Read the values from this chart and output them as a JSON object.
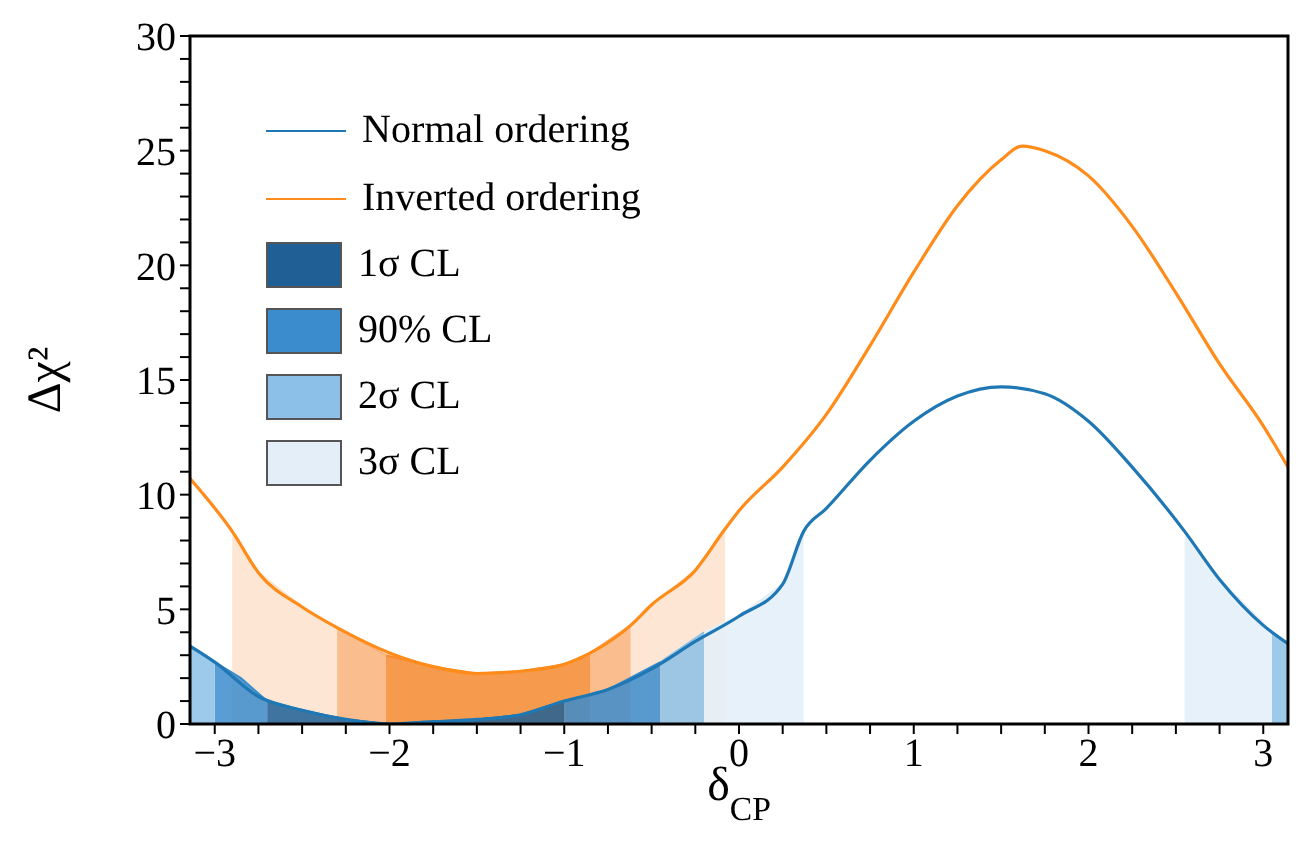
{
  "chart_data": {
    "type": "line",
    "xlabel": "δ$_{CP}$",
    "ylabel": "Δχ²",
    "xlim": [
      -3.1416,
      3.1416
    ],
    "ylim": [
      0,
      30
    ],
    "xticks": [
      -3,
      {
        "value": -2.75,
        "label": null
      },
      {
        "value": -2.5,
        "label": null
      },
      {
        "value": -2.25,
        "label": null
      },
      -2,
      {
        "value": -1.75,
        "label": null
      },
      {
        "value": -1.5,
        "label": null
      },
      {
        "value": -1.25,
        "label": null
      },
      -1,
      {
        "value": -0.75,
        "label": null
      },
      {
        "value": -0.5,
        "label": null
      },
      {
        "value": -0.25,
        "label": null
      },
      0,
      {
        "value": 0.25,
        "label": null
      },
      {
        "value": 0.5,
        "label": null
      },
      {
        "value": 0.75,
        "label": null
      },
      1,
      {
        "value": 1.25,
        "label": null
      },
      {
        "value": 1.5,
        "label": null
      },
      {
        "value": 1.75,
        "label": null
      },
      2,
      {
        "value": 2.25,
        "label": null
      },
      {
        "value": 2.5,
        "label": null
      },
      {
        "value": 2.75,
        "label": null
      },
      3
    ],
    "yticks": [
      0,
      {
        "value": 1,
        "label": null
      },
      {
        "value": 2,
        "label": null
      },
      {
        "value": 3,
        "label": null
      },
      {
        "value": 4,
        "label": null
      },
      5,
      {
        "value": 6,
        "label": null
      },
      {
        "value": 7,
        "label": null
      },
      {
        "value": 8,
        "label": null
      },
      {
        "value": 9,
        "label": null
      },
      10,
      {
        "value": 11,
        "label": null
      },
      {
        "value": 12,
        "label": null
      },
      {
        "value": 13,
        "label": null
      },
      {
        "value": 14,
        "label": null
      },
      15,
      {
        "value": 16,
        "label": null
      },
      {
        "value": 17,
        "label": null
      },
      {
        "value": 18,
        "label": null
      },
      {
        "value": 19,
        "label": null
      },
      20,
      {
        "value": 21,
        "label": null
      },
      {
        "value": 22,
        "label": null
      },
      {
        "value": 23,
        "label": null
      },
      {
        "value": 24,
        "label": null
      },
      25,
      {
        "value": 26,
        "label": null
      },
      {
        "value": 27,
        "label": null
      },
      {
        "value": 28,
        "label": null
      },
      {
        "value": 29,
        "label": null
      },
      30
    ],
    "legend": "top left",
    "marker": "none",
    "series": [
      {
        "type": "area",
        "color": "#fde3cc",
        "x": [
          -2.9,
          -2.75,
          -2.5,
          -2.3,
          -1.4,
          -0.62,
          -0.5,
          -0.25,
          -0.08
        ],
        "values": [
          8.4,
          6.6,
          5.1,
          4.2,
          null,
          4.3,
          5.2,
          6.7,
          8.5
        ]
      },
      {
        "type": "area",
        "color": "#f9b27a",
        "x": [
          -2.3,
          -2.02,
          -1.4,
          -0.85,
          -0.62
        ],
        "values": [
          4.2,
          3.0,
          null,
          3.1,
          4.3
        ]
      },
      {
        "type": "area",
        "color": "#f58a2e",
        "x": [
          -2.02,
          -1.75,
          -1.5,
          -1.25,
          -1,
          -0.85
        ],
        "values": [
          3.0,
          2.5,
          2.2,
          2.3,
          2.6,
          3.1
        ]
      },
      {
        "type": "area",
        "name": "1σ CL",
        "color": "#1f5f96",
        "x": [
          -2.7,
          -2.5,
          -2.25,
          -2,
          -1.75,
          -1.5,
          -1.25,
          -1.0
        ],
        "values": [
          1.0,
          0.6,
          0.2,
          0,
          0.1,
          0.2,
          0.4,
          1.0
        ]
      },
      {
        "type": "area",
        "name": "90% CL",
        "color": "#3b8ccc",
        "x": [
          -3.0,
          -2.85,
          -2.7,
          -1.85,
          -1.0,
          -0.75,
          -0.45
        ],
        "values": [
          2.7,
          2.0,
          1.0,
          null,
          1.0,
          1.5,
          2.7
        ]
      },
      {
        "type": "area",
        "name": "2σ CL",
        "color": "#8cc0e8",
        "x": [
          -3.1416,
          -3.0,
          -1.7,
          -0.45,
          -0.2,
          0.5,
          3.05,
          3.1416
        ],
        "values": [
          3.4,
          2.7,
          null,
          2.7,
          4.0,
          null,
          4.0,
          3.5
        ]
      },
      {
        "type": "area",
        "name": "3σ CL",
        "color": "#e3eef9",
        "x": [
          -0.2,
          0,
          0.25,
          0.37,
          1.5,
          2.55,
          2.75,
          3.05
        ],
        "values": [
          4.0,
          4.7,
          6.1,
          8.4,
          null,
          8.4,
          6.3,
          4.0
        ]
      },
      {
        "name": "Normal ordering",
        "color": "#1f77b4",
        "x": [
          -3.1416,
          -3,
          -2.75,
          -2.5,
          -2.25,
          -2,
          -1.75,
          -1.5,
          -1.25,
          -1,
          -0.75,
          -0.5,
          -0.25,
          0,
          0.25,
          0.37,
          0.5,
          0.75,
          1,
          1.25,
          1.5,
          1.75,
          2,
          2.25,
          2.55,
          2.75,
          3,
          3.1416
        ],
        "values": [
          3.4,
          2.7,
          1.2,
          0.6,
          0.2,
          0,
          0.1,
          0.2,
          0.4,
          1.0,
          1.5,
          2.4,
          3.6,
          4.7,
          6.1,
          8.4,
          9.4,
          11.5,
          13.2,
          14.3,
          14.7,
          14.4,
          13.2,
          11.2,
          8.4,
          6.3,
          4.3,
          3.5
        ]
      },
      {
        "name": "Inverted ordering",
        "color": "#ff8c1a",
        "x": [
          -3.1416,
          -2.9,
          -2.75,
          -2.5,
          -2.3,
          -2,
          -1.75,
          -1.5,
          -1.25,
          -1,
          -0.85,
          -0.62,
          -0.5,
          -0.25,
          -0.08,
          0,
          0.25,
          0.5,
          0.75,
          1,
          1.25,
          1.5,
          1.62,
          1.75,
          2,
          2.25,
          2.5,
          2.75,
          3,
          3.1416
        ],
        "values": [
          10.7,
          8.4,
          6.6,
          5.1,
          4.2,
          3.1,
          2.5,
          2.2,
          2.3,
          2.6,
          3.1,
          4.3,
          5.2,
          6.7,
          8.5,
          9.3,
          11.2,
          13.5,
          16.5,
          19.7,
          22.6,
          24.6,
          25.2,
          25.0,
          23.9,
          21.7,
          18.8,
          15.7,
          13.0,
          11.2
        ]
      }
    ]
  }
}
